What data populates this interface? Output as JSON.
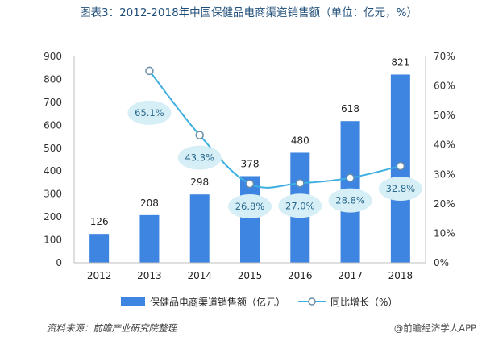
{
  "title": "图表3：2012-2018年中国保健品电商渠道销售额（单位：亿元，%）",
  "source": "资料来源：前瞻产业研究院整理",
  "brand": "@前瞻经济学人APP",
  "colors": {
    "bar": "#3d85e0",
    "line": "#3dafe0",
    "bubble": "#d6eef5",
    "bubble_text": "#2a6a8f",
    "title": "#1f4e79"
  },
  "chart_data": {
    "type": "bar",
    "categories": [
      "2012",
      "2013",
      "2014",
      "2015",
      "2016",
      "2017",
      "2018"
    ],
    "series": [
      {
        "name": "保健品电商渠道销售额（亿元）",
        "type": "bar",
        "axis": "left",
        "values": [
          126,
          208,
          298,
          378,
          480,
          618,
          821
        ],
        "labels": [
          "126",
          "208",
          "298",
          "378",
          "480",
          "618",
          "821"
        ]
      },
      {
        "name": "同比增长（%）",
        "type": "line",
        "axis": "right",
        "values": [
          null,
          65.1,
          43.3,
          26.8,
          27.0,
          28.8,
          32.8
        ],
        "labels": [
          "",
          "65.1%",
          "43.3%",
          "26.8%",
          "27.0%",
          "28.8%",
          "32.8%"
        ]
      }
    ],
    "ylim": [
      0,
      900
    ],
    "yticks": [
      "0",
      "100",
      "200",
      "300",
      "400",
      "500",
      "600",
      "700",
      "800",
      "900"
    ],
    "y2lim": [
      0,
      70
    ],
    "y2ticks": [
      "0%",
      "10%",
      "20%",
      "30%",
      "40%",
      "50%",
      "60%",
      "70%"
    ],
    "legend_position": "bottom",
    "grid": false
  }
}
